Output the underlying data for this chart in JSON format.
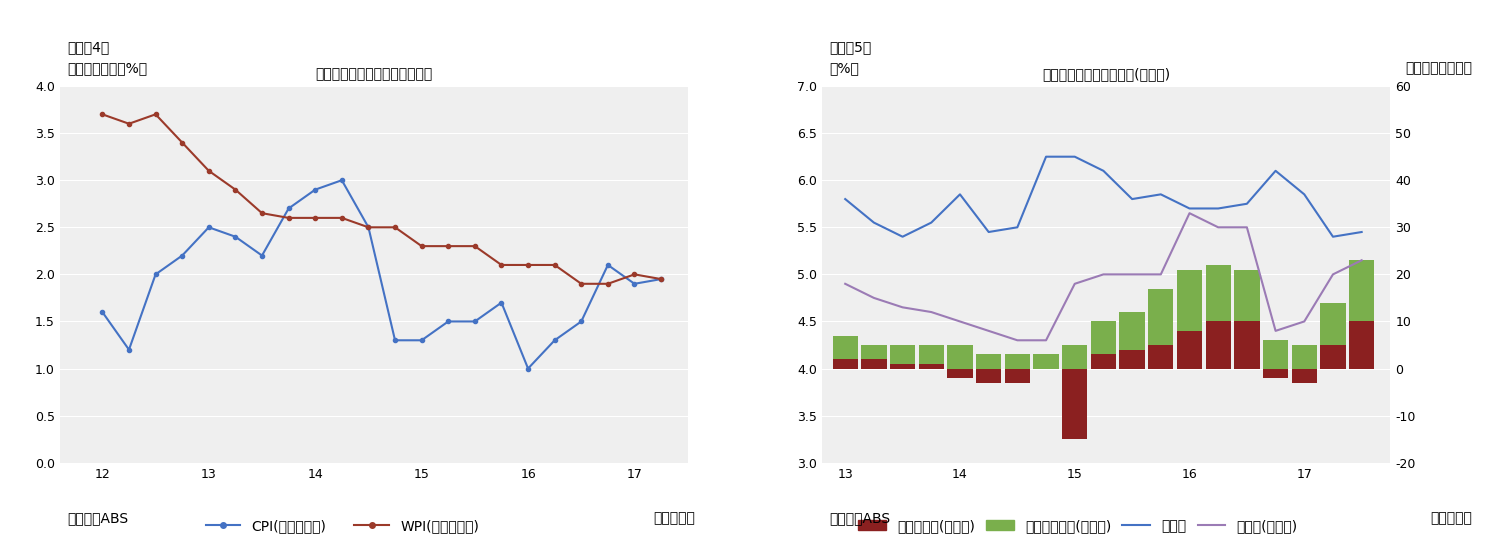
{
  "chart4": {
    "title": "インフレ率と賃金上昇率の推移",
    "subtitle": "（図表4）",
    "ylabel": "（前年同期比、%）",
    "footer_left": "（資料）ABS",
    "footer_right": "（四半期）",
    "xlim": [
      11.6,
      17.5
    ],
    "ylim": [
      0.0,
      4.0
    ],
    "yticks": [
      0.0,
      0.5,
      1.0,
      1.5,
      2.0,
      2.5,
      3.0,
      3.5,
      4.0
    ],
    "ytick_labels": [
      "0.0",
      "0.5",
      "1.0",
      "1.5",
      "2.0",
      "2.5",
      "3.0",
      "3.5",
      "4.0"
    ],
    "xticks": [
      12,
      13,
      14,
      15,
      16,
      17
    ],
    "cpi_x": [
      12.0,
      12.25,
      12.5,
      12.75,
      13.0,
      13.25,
      13.5,
      13.75,
      14.0,
      14.25,
      14.5,
      14.75,
      15.0,
      15.25,
      15.5,
      15.75,
      16.0,
      16.25,
      16.5,
      16.75,
      17.0,
      17.25
    ],
    "cpi_y": [
      1.6,
      1.2,
      2.0,
      2.2,
      2.5,
      2.4,
      2.2,
      2.7,
      2.9,
      3.0,
      2.5,
      1.3,
      1.3,
      1.5,
      1.5,
      1.7,
      1.0,
      1.3,
      1.5,
      2.1,
      1.9,
      1.95
    ],
    "wpi_x": [
      12.0,
      12.25,
      12.5,
      12.75,
      13.0,
      13.25,
      13.5,
      13.75,
      14.0,
      14.25,
      14.5,
      14.75,
      15.0,
      15.25,
      15.5,
      15.75,
      16.0,
      16.25,
      16.5,
      16.75,
      17.0,
      17.25
    ],
    "wpi_y": [
      3.7,
      3.6,
      3.7,
      3.4,
      3.1,
      2.9,
      2.65,
      2.6,
      2.6,
      2.6,
      2.5,
      2.5,
      2.3,
      2.3,
      2.3,
      2.1,
      2.1,
      2.1,
      1.9,
      1.9,
      2.0,
      1.95
    ],
    "cpi_color": "#4472C4",
    "wpi_color": "#9B3A2A",
    "cpi_label": "CPI(インフレ率)",
    "wpi_label": "WPI(賃金上昇率)",
    "bg_color": "#EFEFEF"
  },
  "chart5": {
    "title": "失業率と就業者数の推移(原系列)",
    "subtitle": "（図表5）",
    "ylabel_left": "（%）",
    "ylabel_right": "（前年比、万人）",
    "footer_left": "（資料）ABS",
    "footer_right": "（四半期）",
    "ylim_left": [
      3.0,
      7.0
    ],
    "ylim_right": [
      -20,
      60
    ],
    "yticks_left": [
      3.0,
      3.5,
      4.0,
      4.5,
      5.0,
      5.5,
      6.0,
      6.5,
      7.0
    ],
    "ytick_labels_left": [
      "3.0",
      "3.5",
      "4.0",
      "4.5",
      "5.0",
      "5.5",
      "6.0",
      "6.5",
      "7.0"
    ],
    "yticks_right": [
      -20,
      -10,
      0,
      10,
      20,
      30,
      40,
      50,
      60
    ],
    "ytick_labels_right": [
      "-20",
      "-10",
      "0",
      "10",
      "20",
      "30",
      "40",
      "50",
      "60"
    ],
    "xticks": [
      13,
      14,
      15,
      16,
      17
    ],
    "bar_x": [
      13.0,
      13.25,
      13.5,
      13.75,
      14.0,
      14.25,
      14.5,
      14.75,
      15.0,
      15.25,
      15.5,
      15.75,
      16.0,
      16.25,
      16.5,
      16.75,
      17.0,
      17.25,
      17.5
    ],
    "fulltime": [
      2,
      2,
      1,
      1,
      -2,
      -3,
      -3,
      0,
      -15,
      3,
      4,
      5,
      8,
      10,
      10,
      -2,
      -3,
      5,
      10
    ],
    "parttime": [
      5,
      3,
      4,
      4,
      5,
      3,
      3,
      3,
      5,
      7,
      8,
      12,
      13,
      12,
      11,
      6,
      5,
      9,
      13
    ],
    "unemp_x": [
      13.0,
      13.25,
      13.5,
      13.75,
      14.0,
      14.25,
      14.5,
      14.75,
      15.0,
      15.25,
      15.5,
      15.75,
      16.0,
      16.25,
      16.5,
      16.75,
      17.0,
      17.25,
      17.5
    ],
    "unemp_y": [
      5.8,
      5.55,
      5.4,
      5.55,
      5.85,
      5.45,
      5.5,
      6.25,
      6.25,
      6.1,
      5.8,
      5.85,
      5.7,
      5.7,
      5.75,
      6.1,
      5.85,
      5.4,
      5.45
    ],
    "employ_x": [
      13.0,
      13.25,
      13.5,
      13.75,
      14.0,
      14.25,
      14.5,
      14.75,
      15.0,
      15.25,
      15.5,
      15.75,
      16.0,
      16.25,
      16.5,
      16.75,
      17.0,
      17.25,
      17.5
    ],
    "employ_y": [
      18,
      15,
      13,
      12,
      10,
      8,
      6,
      6,
      18,
      20,
      20,
      20,
      33,
      30,
      30,
      8,
      10,
      20,
      23
    ],
    "fulltime_color": "#8B2020",
    "parttime_color": "#7AAF4C",
    "unemp_color": "#4472C4",
    "employ_color": "#9B7BB5",
    "bar_width": 0.22,
    "fulltime_label": "フルタイム(右目盛)",
    "parttime_label": "パートタイム(右目盛)",
    "unemp_label": "失業率",
    "employ_label": "就業者(右目盛)",
    "bg_color": "#EFEFEF",
    "xlim": [
      12.8,
      17.75
    ]
  }
}
